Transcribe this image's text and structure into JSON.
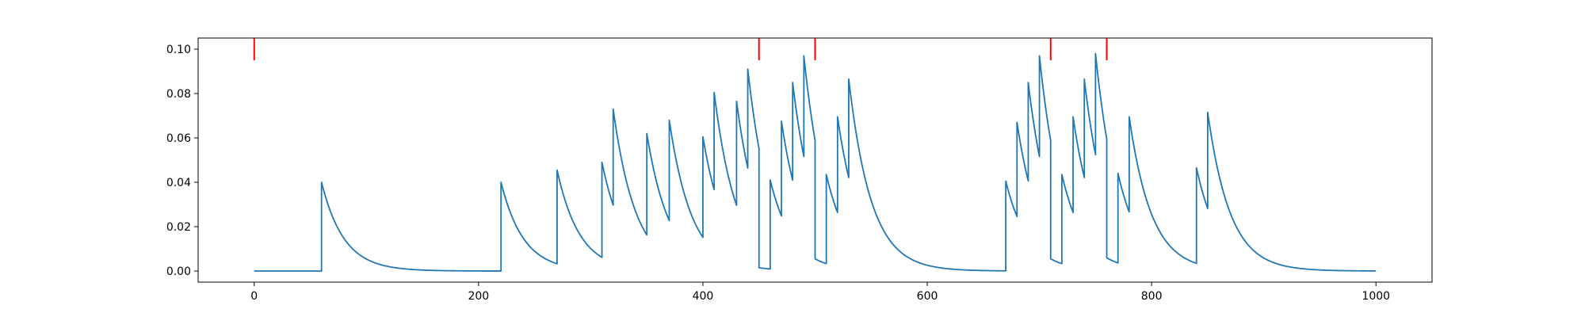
{
  "chart_data": {
    "type": "line",
    "title": "",
    "xlabel": "",
    "ylabel": "",
    "xlim": [
      -50,
      1050
    ],
    "ylim": [
      -0.005,
      0.105
    ],
    "grid": false,
    "x_ticks": [
      0,
      200,
      400,
      600,
      800,
      1000
    ],
    "x_tick_labels": [
      "0",
      "200",
      "400",
      "600",
      "800",
      "1000"
    ],
    "y_ticks": [
      0.0,
      0.02,
      0.04,
      0.06,
      0.08,
      0.1
    ],
    "y_tick_labels": [
      "0.00",
      "0.02",
      "0.04",
      "0.06",
      "0.08",
      "0.10"
    ],
    "series": [
      {
        "color": "#1f77b4",
        "tau": 20,
        "x_range": [
          0,
          1000
        ],
        "start_value": 0.0,
        "events": [
          {
            "x": 60,
            "y": 0.04
          },
          {
            "x": 220,
            "y": 0.04
          },
          {
            "x": 270,
            "y": 0.0455
          },
          {
            "x": 310,
            "y": 0.049
          },
          {
            "x": 320,
            "y": 0.073
          },
          {
            "x": 350,
            "y": 0.062
          },
          {
            "x": 370,
            "y": 0.068
          },
          {
            "x": 400,
            "y": 0.0605
          },
          {
            "x": 410,
            "y": 0.0805
          },
          {
            "x": 430,
            "y": 0.0765
          },
          {
            "x": 440,
            "y": 0.091
          },
          {
            "x": 450,
            "y": 0.0015
          },
          {
            "x": 460,
            "y": 0.041
          },
          {
            "x": 470,
            "y": 0.0675
          },
          {
            "x": 480,
            "y": 0.085
          },
          {
            "x": 490,
            "y": 0.097
          },
          {
            "x": 500,
            "y": 0.0055
          },
          {
            "x": 510,
            "y": 0.0435
          },
          {
            "x": 520,
            "y": 0.0695
          },
          {
            "x": 530,
            "y": 0.0865
          },
          {
            "x": 670,
            "y": 0.0405
          },
          {
            "x": 680,
            "y": 0.067
          },
          {
            "x": 690,
            "y": 0.085
          },
          {
            "x": 700,
            "y": 0.097
          },
          {
            "x": 710,
            "y": 0.0055
          },
          {
            "x": 720,
            "y": 0.0435
          },
          {
            "x": 730,
            "y": 0.0695
          },
          {
            "x": 740,
            "y": 0.0865
          },
          {
            "x": 750,
            "y": 0.098
          },
          {
            "x": 760,
            "y": 0.006
          },
          {
            "x": 770,
            "y": 0.044
          },
          {
            "x": 780,
            "y": 0.0695
          },
          {
            "x": 840,
            "y": 0.0465
          },
          {
            "x": 850,
            "y": 0.0715
          }
        ]
      }
    ],
    "markers": {
      "color": "#ff0000",
      "y_range": [
        0.095,
        0.105
      ],
      "x": [
        0,
        450,
        500,
        710,
        760
      ]
    }
  }
}
